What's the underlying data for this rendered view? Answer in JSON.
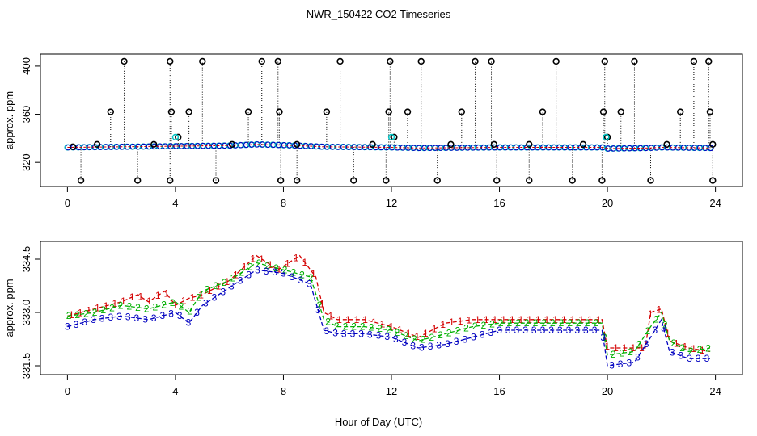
{
  "title": "NWR_150422  CO2 Timeseries",
  "xlabel": "Hour of Day (UTC)",
  "chart_data": [
    {
      "type": "scatter",
      "name": "top-panel",
      "ylabel": "approx. ppm",
      "xlim": [
        -1,
        25
      ],
      "ylim": [
        300,
        410
      ],
      "x_ticks": [
        "0",
        "4",
        "8",
        "12",
        "16",
        "20",
        "24"
      ],
      "x_tick_values": [
        0,
        4,
        8,
        12,
        16,
        20,
        24
      ],
      "y_ticks": [
        "320",
        "360",
        "400"
      ],
      "y_tick_values": [
        320,
        360,
        400
      ],
      "baseline": [
        [
          0,
          332.5
        ],
        [
          2,
          333
        ],
        [
          4,
          333.5
        ],
        [
          6,
          334
        ],
        [
          7,
          335
        ],
        [
          7.8,
          334.5
        ],
        [
          8.5,
          334
        ],
        [
          9.5,
          333
        ],
        [
          12,
          332.5
        ],
        [
          13,
          332
        ],
        [
          16,
          332.5
        ],
        [
          19.8,
          332.5
        ],
        [
          20,
          331.5
        ],
        [
          21.5,
          332
        ],
        [
          22,
          332.5
        ],
        [
          23.8,
          332
        ]
      ],
      "high_outliers": [
        [
          0.2,
          333
        ],
        [
          1.1,
          335
        ],
        [
          1.6,
          362
        ],
        [
          2.1,
          404
        ],
        [
          3.2,
          335
        ],
        [
          3.8,
          404
        ],
        [
          3.85,
          362
        ],
        [
          4.1,
          341
        ],
        [
          4.5,
          362
        ],
        [
          5.0,
          404
        ],
        [
          6.1,
          335
        ],
        [
          6.7,
          362
        ],
        [
          7.2,
          404
        ],
        [
          7.8,
          404
        ],
        [
          7.85,
          362
        ],
        [
          8.5,
          335
        ],
        [
          9.6,
          362
        ],
        [
          10.1,
          404
        ],
        [
          11.3,
          335
        ],
        [
          11.9,
          362
        ],
        [
          11.95,
          404
        ],
        [
          12.1,
          341
        ],
        [
          12.6,
          362
        ],
        [
          13.1,
          404
        ],
        [
          14.2,
          335
        ],
        [
          14.6,
          362
        ],
        [
          15.1,
          404
        ],
        [
          15.7,
          404
        ],
        [
          15.8,
          335
        ],
        [
          17.1,
          335
        ],
        [
          17.6,
          362
        ],
        [
          18.1,
          404
        ],
        [
          19.1,
          335
        ],
        [
          19.85,
          362
        ],
        [
          19.9,
          404
        ],
        [
          20.0,
          341
        ],
        [
          20.5,
          362
        ],
        [
          21.0,
          404
        ],
        [
          22.2,
          335
        ],
        [
          22.7,
          362
        ],
        [
          23.2,
          404
        ],
        [
          23.75,
          404
        ],
        [
          23.8,
          362
        ],
        [
          23.9,
          335
        ]
      ],
      "low_outliers": [
        [
          0.5,
          305
        ],
        [
          2.6,
          305
        ],
        [
          3.8,
          305
        ],
        [
          5.5,
          305
        ],
        [
          7.9,
          305
        ],
        [
          8.5,
          305
        ],
        [
          10.6,
          305
        ],
        [
          11.8,
          305
        ],
        [
          13.7,
          305
        ],
        [
          15.9,
          305
        ],
        [
          17.1,
          305
        ],
        [
          18.7,
          305
        ],
        [
          19.8,
          305
        ],
        [
          21.6,
          305
        ],
        [
          23.9,
          305
        ]
      ],
      "cyan_points": [
        [
          4.0,
          341
        ],
        [
          12.0,
          341
        ],
        [
          19.95,
          341
        ]
      ]
    },
    {
      "type": "line",
      "name": "bottom-panel",
      "ylabel": "approx. ppm",
      "xlim": [
        -1,
        25
      ],
      "ylim": [
        331.25,
        335.0
      ],
      "x_ticks": [
        "0",
        "4",
        "8",
        "12",
        "16",
        "20",
        "24"
      ],
      "x_tick_values": [
        0,
        4,
        8,
        12,
        16,
        20,
        24
      ],
      "y_ticks": [
        "331.5",
        "333.0",
        "334.5"
      ],
      "y_tick_values": [
        331.5,
        333.0,
        334.5
      ],
      "series": [
        {
          "name": "1",
          "color": "#d40000",
          "points": [
            [
              0,
              332.9
            ],
            [
              1,
              333.1
            ],
            [
              2,
              333.3
            ],
            [
              2.6,
              333.5
            ],
            [
              3.0,
              333.3
            ],
            [
              3.6,
              333.6
            ],
            [
              4.0,
              333.2
            ],
            [
              4.5,
              333.4
            ],
            [
              5.0,
              333.5
            ],
            [
              6.0,
              333.9
            ],
            [
              7.0,
              334.6
            ],
            [
              7.8,
              334.2
            ],
            [
              8.6,
              334.6
            ],
            [
              9.2,
              334.0
            ],
            [
              9.5,
              333.0
            ],
            [
              10,
              332.8
            ],
            [
              11,
              332.8
            ],
            [
              12,
              332.6
            ],
            [
              13,
              332.3
            ],
            [
              14,
              332.7
            ],
            [
              15,
              332.8
            ],
            [
              16,
              332.8
            ],
            [
              17,
              332.8
            ],
            [
              18,
              332.8
            ],
            [
              19,
              332.8
            ],
            [
              19.8,
              332.8
            ],
            [
              20.0,
              332.0
            ],
            [
              20.5,
              332.0
            ],
            [
              21.4,
              332.0
            ],
            [
              21.6,
              333.0
            ],
            [
              22.0,
              333.1
            ],
            [
              22.3,
              332.2
            ],
            [
              23,
              332.0
            ],
            [
              23.8,
              331.9
            ]
          ]
        },
        {
          "name": "2",
          "color": "#00b000",
          "points": [
            [
              0,
              332.9
            ],
            [
              1,
              333.0
            ],
            [
              2,
              333.2
            ],
            [
              3,
              333.1
            ],
            [
              4,
              333.3
            ],
            [
              4.5,
              333.0
            ],
            [
              5,
              333.6
            ],
            [
              6,
              333.9
            ],
            [
              7,
              334.4
            ],
            [
              8,
              334.2
            ],
            [
              9,
              334.0
            ],
            [
              9.5,
              332.8
            ],
            [
              10,
              332.6
            ],
            [
              11,
              332.6
            ],
            [
              12,
              332.5
            ],
            [
              13,
              332.2
            ],
            [
              14,
              332.4
            ],
            [
              15,
              332.6
            ],
            [
              16,
              332.7
            ],
            [
              17,
              332.7
            ],
            [
              18,
              332.7
            ],
            [
              19,
              332.7
            ],
            [
              19.8,
              332.7
            ],
            [
              20,
              331.8
            ],
            [
              21,
              331.9
            ],
            [
              21.6,
              332.6
            ],
            [
              22.0,
              333.0
            ],
            [
              22.3,
              332.2
            ],
            [
              23,
              331.9
            ],
            [
              23.8,
              332.0
            ]
          ]
        },
        {
          "name": "3",
          "color": "#0000c0",
          "points": [
            [
              0,
              332.6
            ],
            [
              1,
              332.8
            ],
            [
              2,
              332.9
            ],
            [
              3,
              332.8
            ],
            [
              4,
              333.0
            ],
            [
              4.5,
              332.7
            ],
            [
              5,
              333.2
            ],
            [
              6,
              333.7
            ],
            [
              7,
              334.2
            ],
            [
              8,
              334.1
            ],
            [
              9,
              333.8
            ],
            [
              9.5,
              332.5
            ],
            [
              10,
              332.4
            ],
            [
              11,
              332.4
            ],
            [
              12,
              332.3
            ],
            [
              13,
              332.0
            ],
            [
              14,
              332.1
            ],
            [
              15,
              332.3
            ],
            [
              16,
              332.5
            ],
            [
              17,
              332.5
            ],
            [
              18,
              332.5
            ],
            [
              19,
              332.5
            ],
            [
              19.8,
              332.5
            ],
            [
              20,
              331.5
            ],
            [
              21,
              331.6
            ],
            [
              21.6,
              332.3
            ],
            [
              22.0,
              332.8
            ],
            [
              22.3,
              331.9
            ],
            [
              23,
              331.7
            ],
            [
              23.8,
              331.7
            ]
          ]
        }
      ]
    }
  ]
}
